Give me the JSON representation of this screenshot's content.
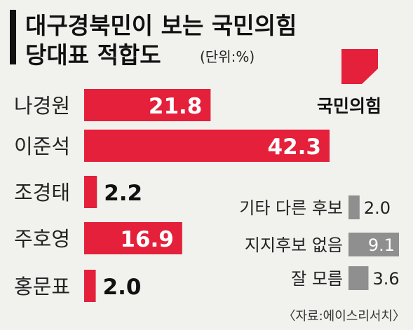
{
  "title_line1": "대구경북민이 보는 국민의힘",
  "title_line2": "당대표 적합도",
  "unit": "(단위:%)",
  "logo_text": "국민의힘",
  "source": "〈자료:에이스리서치〉",
  "colors": {
    "main_bar": "#e4203a",
    "other_bar": "#8f8f8f",
    "background": "#f1f1ee",
    "logo_red": "#e4203a"
  },
  "chart_data": {
    "type": "bar",
    "orientation": "horizontal",
    "xlim": [
      0,
      42.3
    ],
    "candidates": [
      {
        "label": "나경원",
        "value": 21.8,
        "value_label": "21.8"
      },
      {
        "label": "이준석",
        "value": 42.3,
        "value_label": "42.3"
      },
      {
        "label": "조경태",
        "value": 2.2,
        "value_label": "2.2"
      },
      {
        "label": "주호영",
        "value": 16.9,
        "value_label": "16.9"
      },
      {
        "label": "홍문표",
        "value": 2.0,
        "value_label": "2.0"
      }
    ],
    "others": [
      {
        "label": "기타 다른 후보",
        "value": 2.0,
        "value_label": "2.0"
      },
      {
        "label": "지지후보 없음",
        "value": 9.1,
        "value_label": "9.1"
      },
      {
        "label": "잘 모름",
        "value": 3.6,
        "value_label": "3.6"
      }
    ]
  }
}
